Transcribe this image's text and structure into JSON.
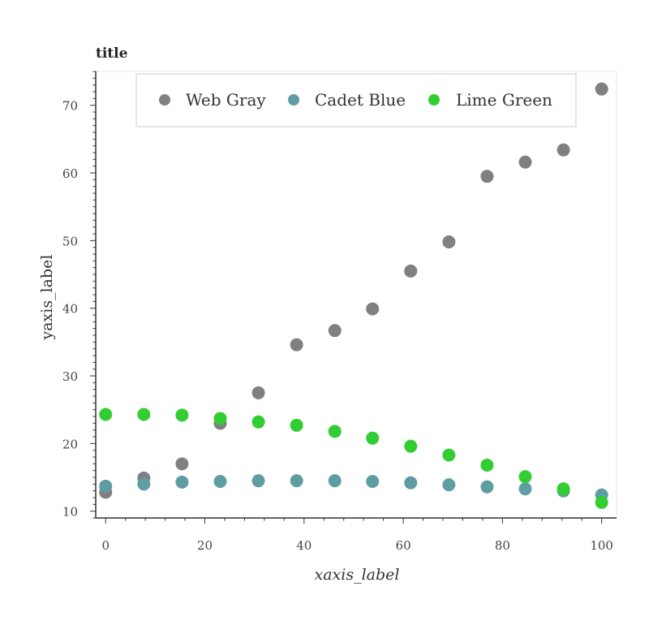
{
  "chart_data": {
    "type": "scatter",
    "title": "title",
    "xlabel": "xaxis_label",
    "ylabel": "yaxis_label",
    "xlim": [
      -2,
      103
    ],
    "ylim": [
      9,
      75
    ],
    "xticks": [
      0,
      20,
      40,
      60,
      80,
      100
    ],
    "yticks": [
      10,
      20,
      30,
      40,
      50,
      60,
      70
    ],
    "grid": false,
    "legend_position": "top",
    "x": [
      0,
      7.7,
      15.4,
      23.1,
      30.8,
      38.5,
      46.2,
      53.8,
      61.5,
      69.2,
      76.9,
      84.6,
      92.3,
      100
    ],
    "series": [
      {
        "name": "Web Gray",
        "color": "#808080",
        "values": [
          12.8,
          14.9,
          17.0,
          23.0,
          27.5,
          34.6,
          36.7,
          39.9,
          45.5,
          49.8,
          59.5,
          61.6,
          63.4,
          72.4
        ]
      },
      {
        "name": "Cadet Blue",
        "color": "#5f9ea0",
        "values": [
          13.7,
          14.0,
          14.3,
          14.4,
          14.5,
          14.5,
          14.5,
          14.4,
          14.2,
          13.9,
          13.6,
          13.3,
          13.0,
          12.4
        ]
      },
      {
        "name": "Lime Green",
        "color": "#32cd32",
        "values": [
          24.3,
          24.3,
          24.2,
          23.7,
          23.2,
          22.7,
          21.8,
          20.8,
          19.6,
          18.3,
          16.8,
          15.1,
          13.3,
          11.3
        ]
      }
    ]
  }
}
